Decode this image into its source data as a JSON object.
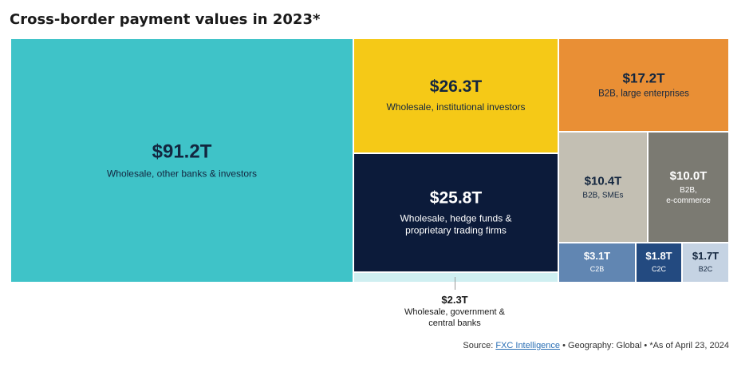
{
  "chart_data": {
    "type": "treemap",
    "title": "Cross-border payment values in 2023*",
    "unit": "T",
    "items": [
      {
        "value_label": "$91.2T",
        "value": 91.2,
        "label": "Wholesale, other banks & investors",
        "color": "#3fc3c8"
      },
      {
        "value_label": "$26.3T",
        "value": 26.3,
        "label": "Wholesale, institutional investors",
        "color": "#f5c917"
      },
      {
        "value_label": "$25.8T",
        "value": 25.8,
        "label": "Wholesale, hedge funds & proprietary trading firms",
        "color": "#0c1b3a"
      },
      {
        "value_label": "$2.3T",
        "value": 2.3,
        "label": "Wholesale, government & central banks",
        "color": "#cfeff1"
      },
      {
        "value_label": "$17.2T",
        "value": 17.2,
        "label": "B2B, large enterprises",
        "color": "#e98f35"
      },
      {
        "value_label": "$10.4T",
        "value": 10.4,
        "label": "B2B, SMEs",
        "color": "#c3bfb3"
      },
      {
        "value_label": "$10.0T",
        "value": 10.0,
        "label": "B2B, e-commerce",
        "color": "#7b7a72"
      },
      {
        "value_label": "$3.1T",
        "value": 3.1,
        "label": "C2B",
        "color": "#6186b2"
      },
      {
        "value_label": "$1.8T",
        "value": 1.8,
        "label": "C2C",
        "color": "#234a80"
      },
      {
        "value_label": "$1.7T",
        "value": 1.7,
        "label": "B2C",
        "color": "#c5d3e3"
      }
    ]
  },
  "footer": {
    "source_prefix": "Source: ",
    "source_link": "FXC Intelligence",
    "geography": " • Geography: Global • ",
    "as_of": "*As of April 23, 2024"
  }
}
